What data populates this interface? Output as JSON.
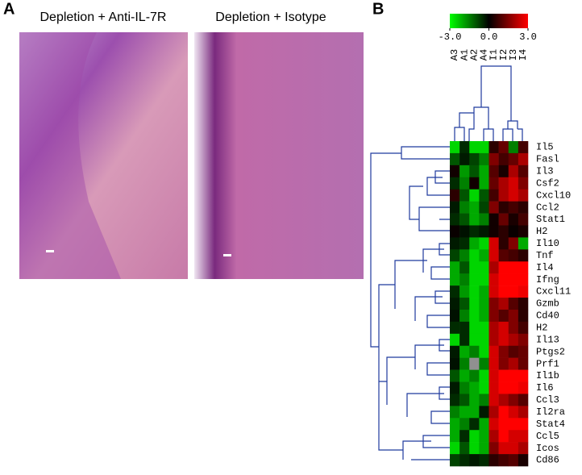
{
  "panels": {
    "a": {
      "label": "A",
      "left_title": "Depletion + Anti-IL-7R",
      "right_title": "Depletion + Isotype"
    },
    "b": {
      "label": "B"
    }
  },
  "chart_data": {
    "type": "heatmap",
    "x": [
      "A3",
      "A1",
      "A2",
      "A4",
      "I1",
      "I2",
      "I3",
      "I4"
    ],
    "y": [
      "Il5",
      "Fasl",
      "Il3",
      "Csf2",
      "Cxcl10",
      "Ccl2",
      "Stat1",
      "H2",
      "Il10",
      "Tnf",
      "Il4",
      "Ifng",
      "Cxcl11",
      "Gzmb",
      "Cd40",
      "H2",
      "Il13",
      "Ptgs2",
      "Prf1",
      "Il1b",
      "Il6",
      "Ccl3",
      "Il2ra",
      "Stat4",
      "Ccl5",
      "Icos",
      "Cd86"
    ],
    "values": [
      [
        -2.5,
        -0.5,
        -2.5,
        -2.5,
        0.5,
        1.2,
        -1.5,
        0.8
      ],
      [
        -1,
        -0.3,
        -0.8,
        -1.5,
        1.5,
        0.8,
        1.2,
        2
      ],
      [
        0.2,
        -1.8,
        -1,
        -2,
        1,
        0.3,
        2,
        1
      ],
      [
        -0.5,
        -1.5,
        0.2,
        -2,
        1.2,
        2,
        2.5,
        1.5
      ],
      [
        0.5,
        -1,
        -2.5,
        -1,
        0.8,
        2,
        2.5,
        2
      ],
      [
        -0.3,
        -1.5,
        -2,
        -0.8,
        1.5,
        0.5,
        0.8,
        0.5
      ],
      [
        -0.5,
        -1,
        -2,
        -1.5,
        0.2,
        1.2,
        0.3,
        0.8
      ],
      [
        0.1,
        -0.2,
        -0.5,
        -0.3,
        0.2,
        0.5,
        0.1,
        0.3
      ],
      [
        -0.3,
        -0.5,
        -2,
        -2.5,
        2.5,
        0.5,
        1.5,
        -2
      ],
      [
        -0.8,
        -1.5,
        -2.5,
        -2,
        2.5,
        1,
        0.8,
        0.5
      ],
      [
        -2,
        -1,
        -2.5,
        -2.5,
        2,
        3,
        3,
        3
      ],
      [
        -2,
        -1.5,
        -2.5,
        -2.5,
        2.5,
        3,
        3,
        3
      ],
      [
        -0.5,
        -1.8,
        -2.5,
        -2,
        2.5,
        3,
        3,
        2.8
      ],
      [
        -0.3,
        -1,
        -2.5,
        -2,
        1.5,
        2,
        1,
        0.5
      ],
      [
        -0.2,
        -1.5,
        -2.5,
        -2,
        1.5,
        1,
        1.5,
        0.5
      ],
      [
        -0.5,
        -0.5,
        -2.5,
        -2.5,
        2,
        2.5,
        1.5,
        0.8
      ],
      [
        -2.5,
        -0.5,
        -2.5,
        -2.5,
        2,
        2.5,
        2,
        1.5
      ],
      [
        -0.3,
        -2,
        -1.5,
        -2.5,
        2.5,
        1.5,
        1,
        1.2
      ],
      [
        -0.2,
        -1.5,
        null,
        -1.5,
        2.5,
        1.5,
        2,
        1.2
      ],
      [
        -1,
        -2,
        -1.5,
        -2.5,
        2.5,
        3,
        3,
        3
      ],
      [
        -0.3,
        -1.5,
        -2,
        -2.5,
        2.5,
        3,
        3,
        2.8
      ],
      [
        -0.5,
        -1,
        -2,
        -1.5,
        2.5,
        2,
        1.5,
        1
      ],
      [
        -1.5,
        -2,
        -2,
        -0.3,
        2,
        3,
        2.5,
        2
      ],
      [
        -2,
        -1.5,
        -0.5,
        -2,
        2.5,
        3,
        3,
        3
      ],
      [
        -2,
        -0.5,
        -2.5,
        -2,
        2,
        3,
        2.5,
        2.5
      ],
      [
        -2.5,
        -1,
        -2.5,
        -2,
        1.5,
        2.5,
        2.5,
        2
      ],
      [
        -0.8,
        -0.5,
        -0.3,
        -0.5,
        0.5,
        0.8,
        1,
        0.3
      ]
    ],
    "colorbar_lim": [
      -3,
      3
    ],
    "colorbar_ticks": [
      {
        "value": -3,
        "label": "-3.0"
      },
      {
        "value": 0,
        "label": "0.0"
      },
      {
        "value": 3,
        "label": "3.0"
      }
    ],
    "colors": [
      "#00ff00",
      "#000000",
      "#ff0000"
    ],
    "missing_color": "#909090"
  }
}
